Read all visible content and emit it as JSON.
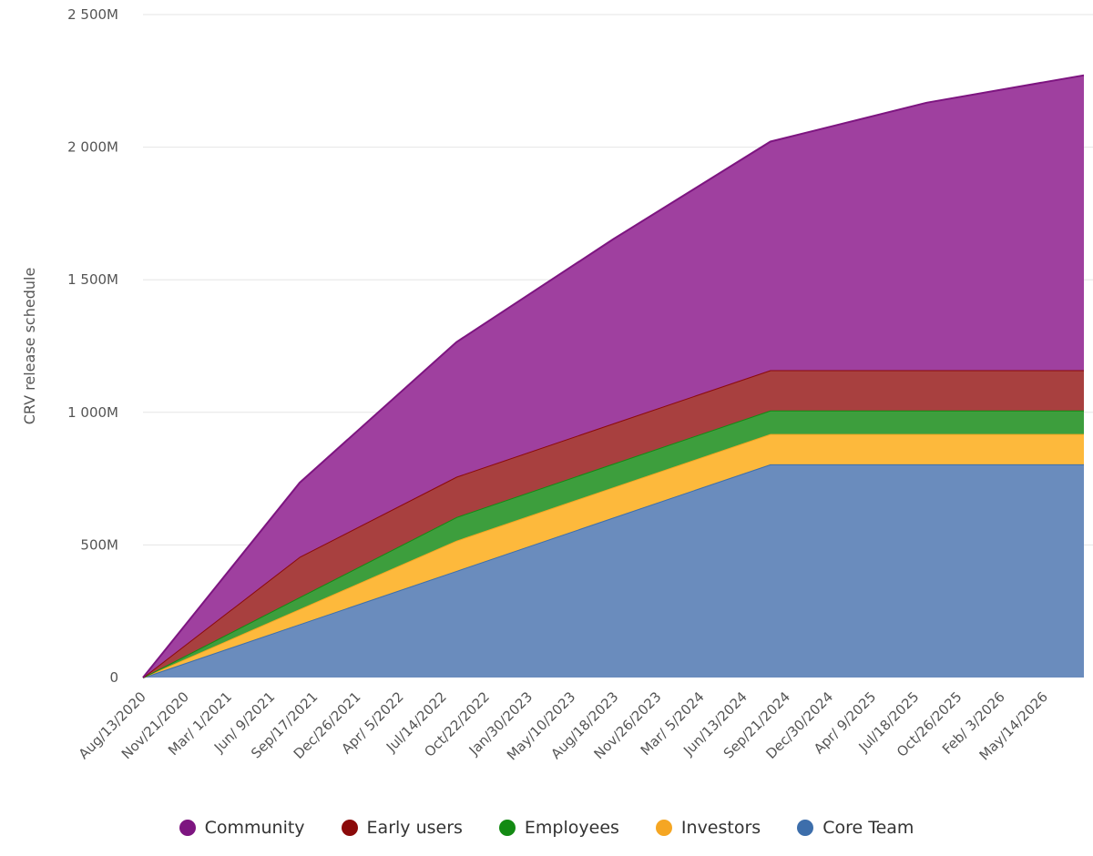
{
  "chart_data": {
    "type": "area",
    "stacked": true,
    "title": "",
    "xlabel": "",
    "ylabel": "CRV release schedule",
    "ylim": [
      0,
      2500
    ],
    "y_unit": "M",
    "y_ticks": [
      "0",
      "500M",
      "1 000M",
      "1 500M",
      "2 000M",
      "2 500M"
    ],
    "x_tick_labels": [
      "Aug/13/2020",
      "Nov/21/2020",
      "Mar/ 1/2021",
      "Jun/ 9/2021",
      "Sep/17/2021",
      "Dec/26/2021",
      "Apr/ 5/2022",
      "Jul/14/2022",
      "Oct/22/2022",
      "Jan/30/2023",
      "May/10/2023",
      "Aug/18/2023",
      "Nov/26/2023",
      "Mar/ 5/2024",
      "Jun/13/2024",
      "Sep/21/2024",
      "Dec/30/2024",
      "Apr/ 9/2025",
      "Jul/18/2025",
      "Oct/26/2025",
      "Feb/ 3/2026",
      "May/14/2026"
    ],
    "x": [
      "2020-08-13",
      "2021-08-13",
      "2022-08-13",
      "2023-08-13",
      "2024-08-13",
      "2025-08-13",
      "2026-08-13"
    ],
    "grid": true,
    "legend_position": "bottom",
    "series": [
      {
        "name": "Core Team",
        "color": "#3d6eab",
        "fill": "#6a8cbd",
        "values": [
          0,
          201,
          402,
          603,
          804,
          804,
          804
        ]
      },
      {
        "name": "Investors",
        "color": "#f5a623",
        "fill": "#fdb93c",
        "values": [
          0,
          57,
          114,
          114,
          114,
          114,
          114
        ]
      },
      {
        "name": "Employees",
        "color": "#138a13",
        "fill": "#3d9e3d",
        "values": [
          0,
          45,
          89,
          89,
          89,
          89,
          89
        ]
      },
      {
        "name": "Early users",
        "color": "#8b0a0a",
        "fill": "#a8403f",
        "values": [
          0,
          152,
          152,
          152,
          152,
          152,
          152
        ]
      },
      {
        "name": "Community",
        "color": "#7d1580",
        "fill": "#9f409f",
        "values": [
          0,
          280,
          508,
          695,
          862,
          1009,
          1112
        ]
      }
    ]
  }
}
